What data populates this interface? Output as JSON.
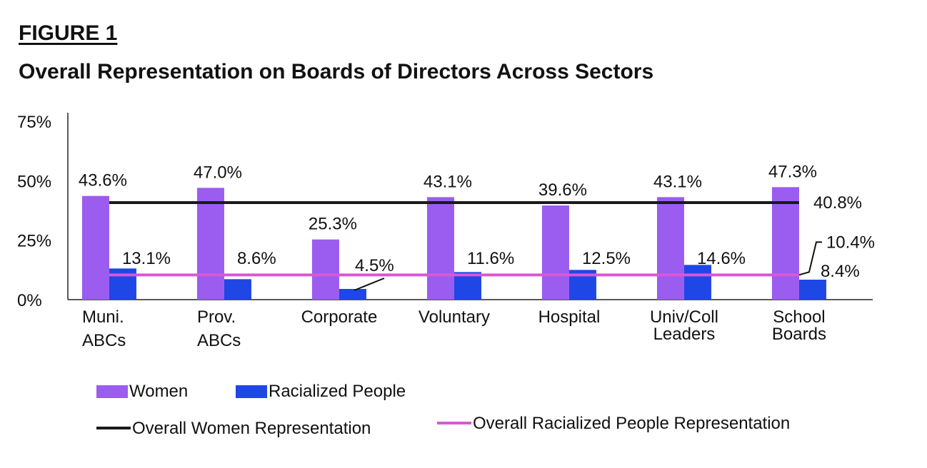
{
  "figure_label": "FIGURE 1",
  "chart_data": {
    "type": "bar",
    "title": "Overall Representation on Boards of Directors Across Sectors",
    "categories": [
      [
        "Muni.",
        "ABCs"
      ],
      [
        "Prov.",
        "ABCs"
      ],
      [
        "Corporate"
      ],
      [
        "Voluntary"
      ],
      [
        "Hospital"
      ],
      [
        "Univ/Coll",
        "Leaders"
      ],
      [
        "School",
        "Boards"
      ]
    ],
    "series": [
      {
        "name": "Women",
        "color": "#9b5cf0",
        "values": [
          43.6,
          47.0,
          25.3,
          43.1,
          39.6,
          43.1,
          47.3
        ],
        "labels": [
          "43.6%",
          "47.0%",
          "25.3%",
          "43.1%",
          "39.6%",
          "43.1%",
          "47.3%"
        ]
      },
      {
        "name": "Racialized People",
        "color": "#1f47e6",
        "values": [
          13.1,
          8.6,
          4.5,
          11.6,
          12.5,
          14.6,
          8.4
        ],
        "labels": [
          "13.1%",
          "8.6%",
          "4.5%",
          "11.6%",
          "12.5%",
          "14.6%",
          "8.4%"
        ]
      }
    ],
    "reference_lines": [
      {
        "name": "Overall Women Representation",
        "value": 40.8,
        "label": "40.8%",
        "color": "#1a1a1a"
      },
      {
        "name": "Overall Racialized People Representation",
        "value": 10.4,
        "label": "10.4%",
        "color": "#d957d6"
      }
    ],
    "yticks": [
      "75%",
      "50%",
      "25%",
      "0%"
    ],
    "ytick_values": [
      75,
      50,
      25,
      0
    ],
    "ylim": [
      0,
      75
    ],
    "grid": false,
    "legend_position": "bottom-left"
  }
}
